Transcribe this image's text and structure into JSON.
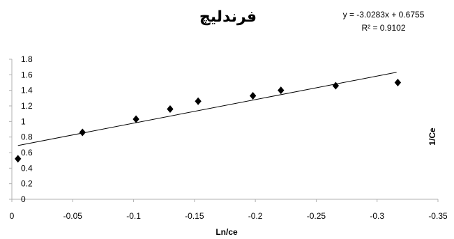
{
  "chart_data": {
    "type": "scatter",
    "title": "فرندليچ",
    "xlabel": "Ln/ce",
    "ylabel": "1/Ce",
    "x": [
      -0.005,
      -0.058,
      -0.102,
      -0.13,
      -0.153,
      -0.198,
      -0.221,
      -0.266,
      -0.317
    ],
    "y": [
      0.52,
      0.86,
      1.03,
      1.16,
      1.26,
      1.33,
      1.4,
      1.46,
      1.5
    ],
    "marker": "diamond",
    "marker_color": "#000000",
    "trendline": {
      "type": "linear",
      "slope": -3.0283,
      "intercept": 0.6755,
      "x_range": [
        -0.005,
        -0.316
      ]
    },
    "equation_text": "y = -3.0283x + 0.6755",
    "r2_text": "R² = 0.9102",
    "xlim": [
      0,
      -0.35
    ],
    "ylim": [
      0,
      1.8
    ],
    "x_ticks": [
      "0",
      "-0.05",
      "-0.1",
      "-0.15",
      "-0.2",
      "-0.25",
      "-0.3",
      "-0.35"
    ],
    "x_tick_values": [
      0,
      -0.05,
      -0.1,
      -0.15,
      -0.2,
      -0.25,
      -0.3,
      -0.35
    ],
    "y_ticks": [
      "0",
      "0.2",
      "0.4",
      "0.6",
      "0.8",
      "1",
      "1.2",
      "1.4",
      "1.6",
      "1.8"
    ],
    "y_tick_values": [
      0,
      0.2,
      0.4,
      0.6,
      0.8,
      1,
      1.2,
      1.4,
      1.6,
      1.8
    ],
    "grid": false,
    "legend": "none"
  }
}
